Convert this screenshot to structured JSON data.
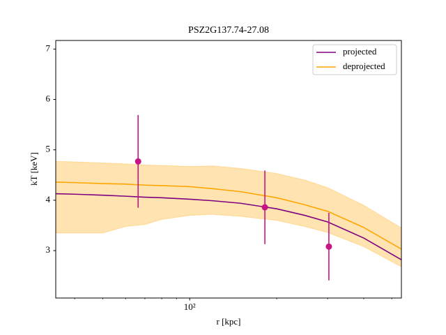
{
  "chart_data": {
    "type": "line",
    "title": "PSZ2G137.74-27.08",
    "xlabel": "r [kpc]",
    "ylabel": "kT [keV]",
    "log_x": true,
    "xlim": [
      34.4,
      540
    ],
    "ylim": [
      2.06,
      7.17
    ],
    "xticks": [
      {
        "value": 100,
        "label": "10²"
      }
    ],
    "xminorticks": [
      40,
      50,
      60,
      70,
      80,
      90,
      200,
      300,
      400,
      500
    ],
    "yticks": [
      3,
      4,
      5,
      6,
      7
    ],
    "legend": "upper right",
    "x": [
      34.4,
      40,
      50,
      60,
      70,
      80,
      100,
      120,
      150,
      200,
      250,
      300,
      400,
      540
    ],
    "series": [
      {
        "name": "projected",
        "color": "#800080",
        "values": [
          4.13,
          4.12,
          4.1,
          4.08,
          4.06,
          4.05,
          4.02,
          3.99,
          3.94,
          3.83,
          3.7,
          3.57,
          3.25,
          2.82
        ]
      },
      {
        "name": "deprojected",
        "color": "#ffa500",
        "values": [
          4.36,
          4.35,
          4.33,
          4.32,
          4.3,
          4.29,
          4.27,
          4.23,
          4.17,
          4.05,
          3.91,
          3.78,
          3.46,
          3.03
        ]
      }
    ],
    "band": {
      "color": "#ffa500",
      "upper": [
        4.77,
        4.76,
        4.74,
        4.72,
        4.7,
        4.69,
        4.67,
        4.68,
        4.63,
        4.53,
        4.4,
        4.25,
        3.9,
        3.45
      ],
      "lower": [
        3.35,
        3.35,
        3.35,
        3.48,
        3.52,
        3.62,
        3.7,
        3.72,
        3.68,
        3.6,
        3.48,
        3.36,
        3.08,
        2.68
      ]
    },
    "points": {
      "color": "#c71585",
      "x": [
        66.3,
        182,
        303
      ],
      "values": [
        4.77,
        3.86,
        3.08
      ],
      "errors": [
        0.92,
        0.73,
        0.67
      ]
    }
  }
}
